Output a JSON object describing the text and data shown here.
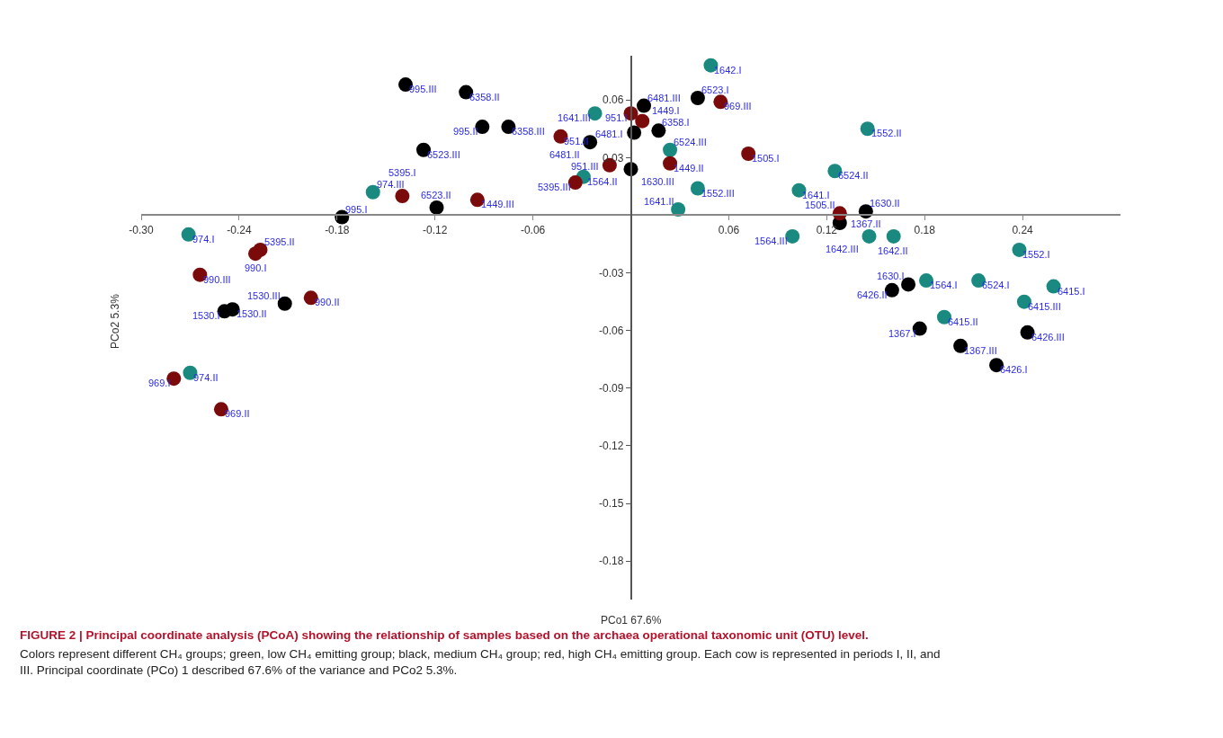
{
  "chart_data": {
    "type": "scatter",
    "title": "FIGURE 2 | Principal coordinate analysis (PCoA) showing the relationship of samples based on the archaea operational taxonomic unit (OTU) level.",
    "subtitle": "Colors represent different CH₄ groups; green, low CH₄ emitting group; black, medium CH₄ group; red, high CH₄ emitting group. Each cow is represented in periods I, II, and III. Principal coordinate (PCo) 1 described 67.6% of the variance and PCo2 5.3%.",
    "xlabel": "PCo1 67.6%",
    "ylabel": "PCo2 5.3%",
    "xlim": [
      -0.3,
      0.3
    ],
    "ylim": [
      -0.2,
      0.083
    ],
    "xticks": [
      {
        "value": -0.3,
        "label": "-0.30"
      },
      -0.24,
      -0.18,
      -0.12,
      -0.06,
      0.06,
      0.12,
      0.18,
      0.24
    ],
    "yticks": [
      0.06,
      0.03,
      -0.03,
      -0.06,
      -0.09,
      -0.12,
      -0.15,
      -0.18
    ],
    "marker": "circle",
    "series": [
      {
        "color": "#1a8a80",
        "x": [
          -0.271,
          -0.27,
          -0.158,
          0.103,
          0.029,
          -0.022,
          0.049,
          0.161,
          0.146,
          0.238,
          0.145,
          0.041,
          0.181,
          -0.029,
          0.099,
          0.213,
          0.125,
          0.024,
          0.259,
          0.192,
          0.241
        ],
        "values": [
          -0.01,
          -0.082,
          0.012,
          0.013,
          0.003,
          0.053,
          0.078,
          -0.011,
          -0.011,
          -0.018,
          0.045,
          0.014,
          -0.034,
          0.02,
          -0.011,
          -0.034,
          0.023,
          0.034,
          -0.037,
          -0.053,
          -0.045
        ]
      },
      {
        "color": "#000000",
        "x": [
          -0.177,
          -0.091,
          -0.138,
          0.017,
          -0.101,
          -0.075,
          0.041,
          -0.119,
          -0.127,
          -0.249,
          -0.244,
          -0.212,
          0.002,
          -0.025,
          0.008,
          0.17,
          0.144,
          0.0,
          0.177,
          0.128,
          0.202,
          0.224,
          0.16,
          0.243
        ],
        "values": [
          -0.001,
          0.046,
          0.068,
          0.044,
          0.064,
          0.046,
          0.061,
          0.004,
          0.034,
          -0.05,
          -0.049,
          -0.046,
          0.043,
          0.038,
          0.057,
          -0.036,
          0.002,
          0.024,
          -0.059,
          -0.004,
          -0.068,
          -0.078,
          -0.039,
          -0.061
        ]
      },
      {
        "color": "#7b0a0a",
        "x": [
          -0.14,
          -0.227,
          -0.034,
          -0.23,
          -0.196,
          -0.264,
          -0.28,
          -0.251,
          0.055,
          0.0,
          -0.043,
          -0.013,
          0.007,
          0.024,
          -0.094,
          0.072,
          0.128
        ],
        "values": [
          0.01,
          -0.018,
          0.017,
          -0.02,
          -0.043,
          -0.031,
          -0.085,
          -0.101,
          0.059,
          0.053,
          0.041,
          0.026,
          0.049,
          0.027,
          0.008,
          0.032,
          0.001
        ]
      }
    ],
    "annotations": [
      {
        "text": "974.I",
        "x": -0.271,
        "y": -0.01
      },
      {
        "text": "974.II",
        "x": -0.27,
        "y": -0.082
      },
      {
        "text": "974.III",
        "x": -0.158,
        "y": 0.012
      },
      {
        "text": "1641.I",
        "x": 0.103,
        "y": 0.013
      },
      {
        "text": "1641.II",
        "x": 0.029,
        "y": 0.003
      },
      {
        "text": "1641.III",
        "x": -0.022,
        "y": 0.053
      },
      {
        "text": "1642.I",
        "x": 0.049,
        "y": 0.078
      },
      {
        "text": "1642.II",
        "x": 0.161,
        "y": -0.011
      },
      {
        "text": "1642.III",
        "x": 0.146,
        "y": -0.011
      },
      {
        "text": "1552.I",
        "x": 0.238,
        "y": -0.018
      },
      {
        "text": "1552.II",
        "x": 0.145,
        "y": 0.045
      },
      {
        "text": "1552.III",
        "x": 0.041,
        "y": 0.014
      },
      {
        "text": "1564.I",
        "x": 0.181,
        "y": -0.034
      },
      {
        "text": "1564.II",
        "x": -0.029,
        "y": 0.02
      },
      {
        "text": "1564.III",
        "x": 0.099,
        "y": -0.011
      },
      {
        "text": "6524.I",
        "x": 0.213,
        "y": -0.034
      },
      {
        "text": "6524.II",
        "x": 0.125,
        "y": 0.023
      },
      {
        "text": "6524.III",
        "x": 0.024,
        "y": 0.034
      },
      {
        "text": "6415.I",
        "x": 0.259,
        "y": -0.037
      },
      {
        "text": "6415.II",
        "x": 0.192,
        "y": -0.053
      },
      {
        "text": "6415.III",
        "x": 0.241,
        "y": -0.045
      },
      {
        "text": "995.I",
        "x": -0.177,
        "y": -0.001
      },
      {
        "text": "995.II",
        "x": -0.091,
        "y": 0.046
      },
      {
        "text": "995.III",
        "x": -0.138,
        "y": 0.068
      },
      {
        "text": "6358.I",
        "x": 0.017,
        "y": 0.044
      },
      {
        "text": "6358.II",
        "x": -0.101,
        "y": 0.064
      },
      {
        "text": "6358.III",
        "x": -0.075,
        "y": 0.046
      },
      {
        "text": "6523.I",
        "x": 0.041,
        "y": 0.061
      },
      {
        "text": "6523.II",
        "x": -0.119,
        "y": 0.004
      },
      {
        "text": "6523.III",
        "x": -0.127,
        "y": 0.034
      },
      {
        "text": "1530.I",
        "x": -0.249,
        "y": -0.05
      },
      {
        "text": "1530.II",
        "x": -0.244,
        "y": -0.049
      },
      {
        "text": "1530.III",
        "x": -0.212,
        "y": -0.046
      },
      {
        "text": "6481.I",
        "x": 0.002,
        "y": 0.043
      },
      {
        "text": "6481.II",
        "x": -0.025,
        "y": 0.038
      },
      {
        "text": "6481.III",
        "x": 0.008,
        "y": 0.057
      },
      {
        "text": "1630.I",
        "x": 0.17,
        "y": -0.036
      },
      {
        "text": "1630.II",
        "x": 0.144,
        "y": 0.002
      },
      {
        "text": "1630.III",
        "x": 0.0,
        "y": 0.024
      },
      {
        "text": "1367.I",
        "x": 0.177,
        "y": -0.059
      },
      {
        "text": "1367.II",
        "x": 0.128,
        "y": -0.004
      },
      {
        "text": "1367.III",
        "x": 0.202,
        "y": -0.068
      },
      {
        "text": "6426.I",
        "x": 0.224,
        "y": -0.078
      },
      {
        "text": "6426.II",
        "x": 0.16,
        "y": -0.039
      },
      {
        "text": "6426.III",
        "x": 0.243,
        "y": -0.061
      },
      {
        "text": "5395.I",
        "x": -0.14,
        "y": 0.01
      },
      {
        "text": "5395.II",
        "x": -0.227,
        "y": -0.018
      },
      {
        "text": "5395.III",
        "x": -0.034,
        "y": 0.017
      },
      {
        "text": "990.I",
        "x": -0.23,
        "y": -0.02
      },
      {
        "text": "990.II",
        "x": -0.196,
        "y": -0.043
      },
      {
        "text": "990.III",
        "x": -0.264,
        "y": -0.031
      },
      {
        "text": "969.I",
        "x": -0.28,
        "y": -0.085
      },
      {
        "text": "969.II",
        "x": -0.251,
        "y": -0.101
      },
      {
        "text": "969.III",
        "x": 0.055,
        "y": 0.059
      },
      {
        "text": "951.I",
        "x": 0.0,
        "y": 0.053
      },
      {
        "text": "951.II",
        "x": -0.043,
        "y": 0.041
      },
      {
        "text": "951.III",
        "x": -0.013,
        "y": 0.026
      },
      {
        "text": "1449.I",
        "x": 0.007,
        "y": 0.049
      },
      {
        "text": "1449.II",
        "x": 0.024,
        "y": 0.027
      },
      {
        "text": "1449.III",
        "x": -0.094,
        "y": 0.008
      },
      {
        "text": "1505.I",
        "x": 0.072,
        "y": 0.032
      },
      {
        "text": "1505.II",
        "x": 0.128,
        "y": 0.001
      }
    ]
  }
}
